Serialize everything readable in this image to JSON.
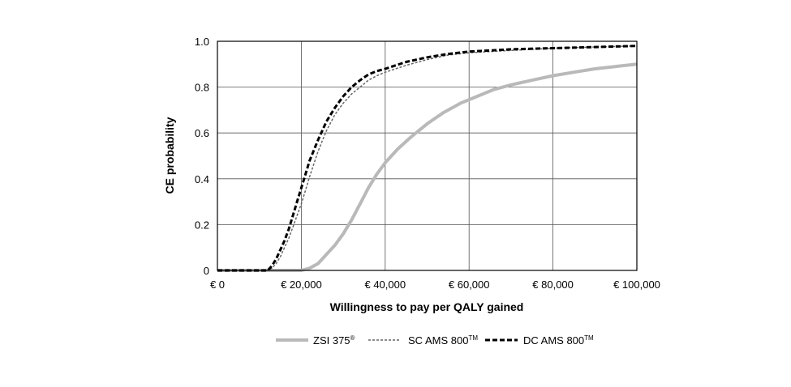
{
  "chart_data": {
    "type": "line",
    "title": "",
    "xlabel": "Willingness to pay per QALY gained",
    "ylabel": "CE probability",
    "xlim": [
      0,
      100000
    ],
    "ylim": [
      0,
      1
    ],
    "grid": true,
    "legend_position": "bottom",
    "x_ticks": [
      0,
      20000,
      40000,
      60000,
      80000,
      100000
    ],
    "x_tick_labels": [
      "€ 0",
      "€ 20,000",
      "€ 40,000",
      "€ 60,000",
      "€ 80,000",
      "€ 100,000"
    ],
    "y_ticks": [
      0,
      0.2,
      0.4,
      0.6,
      0.8,
      1.0
    ],
    "y_tick_labels": [
      "0",
      "0.2",
      "0.4",
      "0.6",
      "0.8",
      "1.0"
    ],
    "series": [
      {
        "name": "ZSI 375",
        "mark": "®",
        "color": "#b9b9b9",
        "style": "solid",
        "x": [
          0,
          20000,
          22000,
          24000,
          26000,
          28000,
          30000,
          32000,
          34000,
          36000,
          38000,
          40000,
          43000,
          46000,
          50000,
          54000,
          58000,
          62000,
          66000,
          70000,
          75000,
          80000,
          85000,
          90000,
          95000,
          100000
        ],
        "y": [
          0,
          0,
          0.01,
          0.03,
          0.07,
          0.11,
          0.16,
          0.22,
          0.29,
          0.36,
          0.42,
          0.47,
          0.53,
          0.58,
          0.64,
          0.69,
          0.73,
          0.76,
          0.79,
          0.81,
          0.83,
          0.85,
          0.865,
          0.88,
          0.89,
          0.9
        ]
      },
      {
        "name": "SC AMS 800",
        "mark": "TM",
        "color": "#666666",
        "style": "thin-dash",
        "x": [
          0,
          12000,
          13000,
          14000,
          15000,
          16000,
          17000,
          18000,
          19000,
          20000,
          21000,
          22000,
          24000,
          26000,
          28000,
          30000,
          32000,
          34000,
          36000,
          38000,
          40000,
          45000,
          50000,
          55000,
          60000,
          65000,
          70000,
          80000,
          90000,
          100000
        ],
        "y": [
          0,
          0,
          0.01,
          0.03,
          0.06,
          0.1,
          0.14,
          0.19,
          0.24,
          0.29,
          0.35,
          0.41,
          0.52,
          0.61,
          0.68,
          0.73,
          0.77,
          0.8,
          0.83,
          0.85,
          0.865,
          0.895,
          0.92,
          0.94,
          0.95,
          0.955,
          0.96,
          0.97,
          0.975,
          0.98
        ]
      },
      {
        "name": "DC AMS 800",
        "mark": "TM",
        "color": "#000000",
        "style": "thick-dash",
        "x": [
          0,
          12000,
          13000,
          14000,
          15000,
          16000,
          17000,
          18000,
          19000,
          20000,
          21000,
          22000,
          24000,
          26000,
          28000,
          30000,
          32000,
          34000,
          36000,
          38000,
          40000,
          45000,
          50000,
          55000,
          60000,
          65000,
          70000,
          80000,
          90000,
          100000
        ],
        "y": [
          0,
          0,
          0.02,
          0.05,
          0.09,
          0.13,
          0.18,
          0.24,
          0.3,
          0.36,
          0.42,
          0.48,
          0.57,
          0.65,
          0.71,
          0.76,
          0.8,
          0.83,
          0.855,
          0.87,
          0.88,
          0.91,
          0.93,
          0.945,
          0.955,
          0.96,
          0.965,
          0.97,
          0.975,
          0.98
        ]
      }
    ]
  }
}
